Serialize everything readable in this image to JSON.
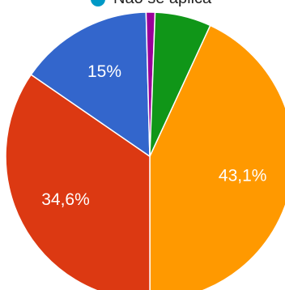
{
  "chart_data": {
    "type": "pie",
    "legend": [
      {
        "label": "Não se aplica",
        "color": "#0099c6"
      }
    ],
    "slices": [
      {
        "value": 43.1,
        "label": "43,1%",
        "color": "#ff9900"
      },
      {
        "value": 34.6,
        "label": "34,6%",
        "color": "#dc3912"
      },
      {
        "value": 15.0,
        "label": "15%",
        "color": "#3366cc"
      },
      {
        "value": 1.0,
        "label": "",
        "color": "#990099"
      },
      {
        "value": 6.3,
        "label": "",
        "color": "#109618"
      }
    ],
    "start_angle_deg": 65.2,
    "direction": "clockwise"
  }
}
